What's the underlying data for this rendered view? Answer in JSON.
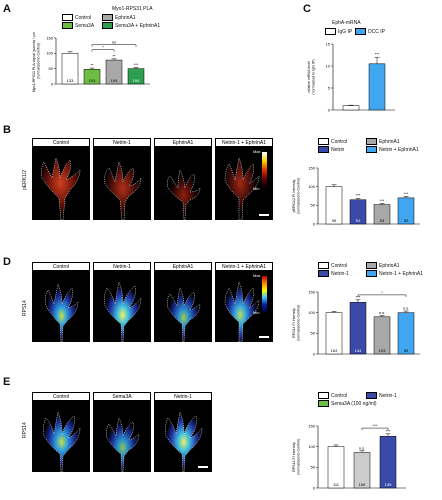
{
  "panels": {
    "A": {
      "letter": "A",
      "title": "Myo1-RPS31 PLA",
      "ylabel": "Myo1-RPS31 PLA signal (puncta / μm²)\n(normalized to Control)",
      "legend": [
        "Control",
        "Sema3A",
        "EphrinA1",
        "Sema3A + EphrinA1"
      ],
      "colors": {
        "Control": "#ffffff",
        "Sema3A": "#6fbe44",
        "EphrinA1": "#a8a8a8",
        "Sema3A + EphrinA1": "#2e9e4f"
      },
      "ns_label": "ns",
      "star1": "*"
    },
    "B": {
      "letter": "B",
      "tiles": [
        "Control",
        "Netrin-1",
        "EphrinA1",
        "Netrin-1 + EphrinA1"
      ],
      "side": "pERK1/2",
      "colorbar_max": "Max",
      "colorbar_min": "Min",
      "ylabel": "pERK1/2 FI intensity\n(normalized to Control)",
      "legend": [
        "Control",
        "Netrin",
        "EphrinA1",
        "Netrin + EphrinA1"
      ],
      "colors": {
        "Control": "#ffffff",
        "Netrin": "#3a4aa8",
        "EphrinA1": "#a8a8a8",
        "Netrin + EphrinA1": "#42a5f0"
      }
    },
    "C": {
      "letter": "C",
      "title": "EphA-mRNA",
      "ylabel": "relative mRNA level\n(normalized to IgG IP)",
      "legend": [
        "IgG IP",
        "DCC IP"
      ],
      "colors": {
        "IgG IP": "#ffffff",
        "DCC IP": "#42a5f0"
      }
    },
    "D": {
      "letter": "D",
      "tiles": [
        "Control",
        "Netrin-1",
        "EphrinA1",
        "Netrin-1 + EphrinA1"
      ],
      "side": "RPS14",
      "colorbar_max": "Max",
      "colorbar_min": "Min",
      "ylabel": "RPS14 FI intensity\n(normalized to Control)",
      "legend": [
        "Control",
        "Netrin-1",
        "EphrinA1",
        "Netrin-1 + EphrinA1"
      ],
      "colors": {
        "Control": "#ffffff",
        "Netrin-1": "#3a4aa8",
        "EphrinA1": "#a8a8a8",
        "Netrin-1 + EphrinA1": "#42a5f0"
      },
      "ns": "n.s.",
      "star": "*"
    },
    "E": {
      "letter": "E",
      "tiles": [
        "Control",
        "Sema3A",
        "Netrin-1"
      ],
      "side": "RPS14",
      "ylabel": "RPS14 FI intensity\n(normalized to Control)",
      "legend": [
        "Control",
        "Netrin-1",
        "Sema3A (100 ng/ml)"
      ],
      "colors": {
        "Control": "#ffffff",
        "Netrin-1": "#3a4aa8",
        "Sema3A (100 ng/ml)": "#6fbe44"
      }
    }
  },
  "chart_data": [
    {
      "panel": "A",
      "type": "bar",
      "categories": [
        "Control",
        "Sema3A",
        "EphrinA1",
        "Sema3A + EphrinA1"
      ],
      "values": [
        100,
        48,
        78,
        50
      ],
      "errors": [
        5,
        4,
        4,
        4
      ],
      "n": [
        "133",
        "193",
        "194",
        "194"
      ],
      "sig": [
        "",
        "**",
        "**",
        "***"
      ],
      "ylim": [
        0,
        150
      ],
      "yticks": [
        0,
        50,
        100,
        150
      ]
    },
    {
      "panel": "B",
      "type": "bar",
      "categories": [
        "Control",
        "Netrin",
        "EphrinA1",
        "Netrin + EphrinA1"
      ],
      "values": [
        100,
        65,
        52,
        70
      ],
      "errors": [
        5,
        4,
        3,
        4
      ],
      "n": [
        "95",
        "91",
        "93",
        "92"
      ],
      "sig": [
        "",
        "***",
        "***",
        "***"
      ],
      "ylim": [
        0,
        150
      ],
      "yticks": [
        0,
        50,
        100,
        150
      ]
    },
    {
      "panel": "C",
      "type": "bar",
      "categories": [
        "IgG IP",
        "DCC IP"
      ],
      "values": [
        1,
        10.5
      ],
      "errors": [
        0.1,
        1.5
      ],
      "sig": [
        "",
        "***"
      ],
      "ylim": [
        0,
        15
      ],
      "yticks": [
        0,
        5,
        10,
        15
      ]
    },
    {
      "panel": "D",
      "type": "bar",
      "categories": [
        "Control",
        "Netrin-1",
        "EphrinA1",
        "Netrin-1 + EphrinA1"
      ],
      "values": [
        100,
        125,
        90,
        100
      ],
      "errors": [
        3,
        6,
        3,
        4
      ],
      "n": [
        "163",
        "144",
        "103",
        "55"
      ],
      "sig": [
        "",
        "***",
        "n.s.",
        "n.s."
      ],
      "ylim": [
        0,
        150
      ],
      "yticks": [
        0,
        50,
        100,
        150
      ]
    },
    {
      "panel": "E",
      "type": "bar",
      "categories": [
        "Control",
        "Sema3A",
        "Netrin-1"
      ],
      "values": [
        100,
        86,
        125
      ],
      "errors": [
        4,
        4,
        6
      ],
      "n": [
        "111",
        "106",
        "139"
      ],
      "sig": [
        "",
        "n.s.",
        "***"
      ],
      "ylim": [
        0,
        150
      ],
      "yticks": [
        0,
        50,
        100,
        150
      ]
    }
  ]
}
